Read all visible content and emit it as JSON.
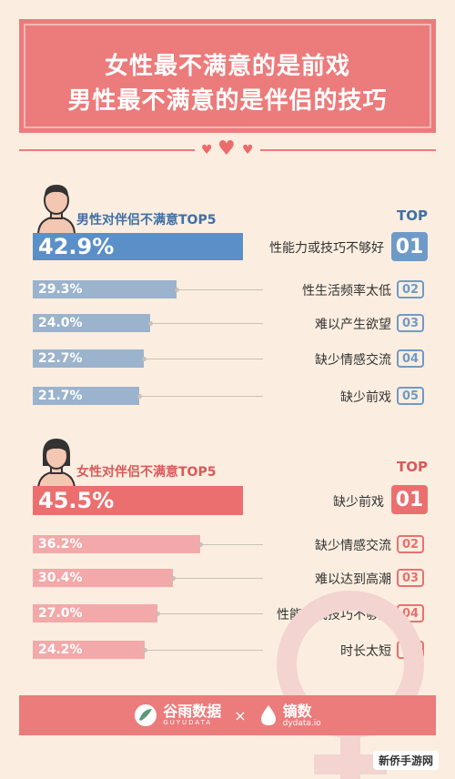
{
  "header": {
    "line1": "女性最不满意的是前戏",
    "line2": "男性最不满意的是伴侣的技巧"
  },
  "colors": {
    "accent": "#ec7b7b",
    "male_primary": "#5b8fc7",
    "male_secondary": "#9bb3cc",
    "male_rank": "#6f9ac7",
    "female_primary": "#ec6f6f",
    "female_secondary": "#f3a9a9",
    "background": "#fbeee0"
  },
  "chart_data": [
    {
      "type": "bar",
      "title": "男性对伴侣不满意TOP5",
      "top_label": "TOP",
      "categories": [
        "性能力或技巧不够好",
        "性生活频率太低",
        "难以产生欲望",
        "缺少情感交流",
        "缺少前戏"
      ],
      "values": [
        42.9,
        29.3,
        24.0,
        22.7,
        21.7
      ],
      "value_labels": [
        "42.9%",
        "29.3%",
        "24.0%",
        "22.7%",
        "21.7%"
      ],
      "ranks": [
        "01",
        "02",
        "03",
        "04",
        "05"
      ]
    },
    {
      "type": "bar",
      "title": "女性对伴侣不满意TOP5",
      "top_label": "TOP",
      "categories": [
        "缺少前戏",
        "缺少情感交流",
        "难以达到高潮",
        "性能力或技巧不够好",
        "时长太短"
      ],
      "values": [
        45.5,
        36.2,
        30.4,
        27.0,
        24.2
      ],
      "value_labels": [
        "45.5%",
        "36.2%",
        "30.4%",
        "27.0%",
        "24.2%"
      ],
      "ranks": [
        "01",
        "02",
        "03",
        "04",
        "05"
      ]
    }
  ],
  "footer": {
    "brand1": "谷雨数据",
    "brand1_sub": "GUYUDATA",
    "separator": "×",
    "brand2": "镝数",
    "brand2_sub": "dydata.io"
  },
  "watermark": "新侨手游网"
}
